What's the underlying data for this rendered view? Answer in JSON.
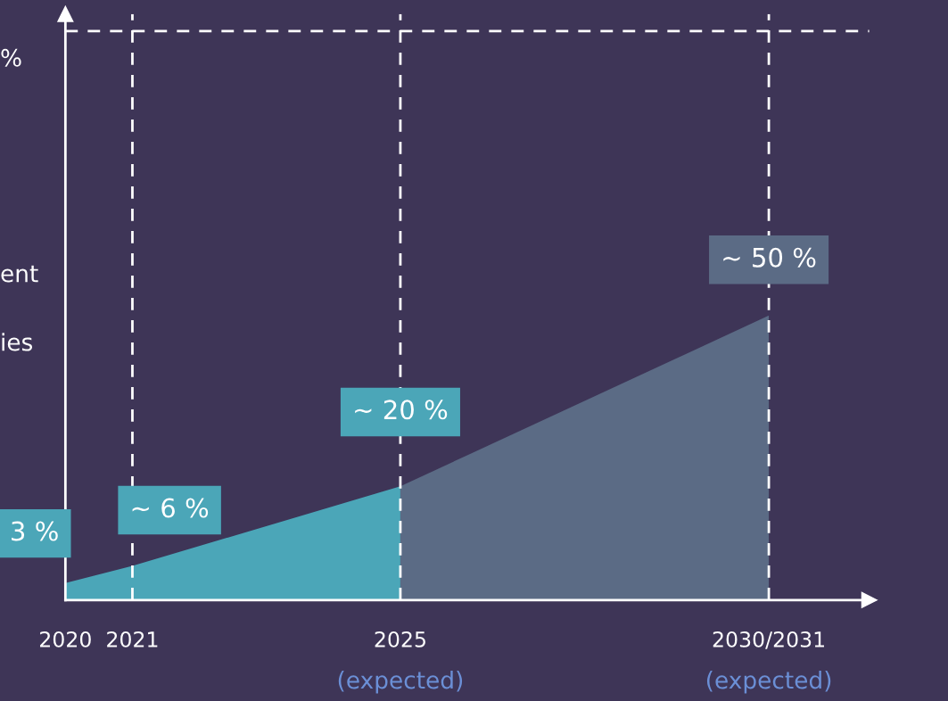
{
  "chart_data": {
    "type": "area",
    "xlim": [
      2020,
      2032
    ],
    "ylim": [
      0,
      103
    ],
    "xticks": [
      2020,
      2021,
      2025,
      {
        "value": 2030.5,
        "label": "2030/2031"
      }
    ],
    "tick_labels": "x",
    "grid": false,
    "series": [
      {
        "color": "#4ba6b8",
        "x": [
          2020,
          2021,
          2025
        ],
        "values": [
          3,
          6,
          20
        ],
        "value_labels": [
          "3 %",
          "~ 6 %",
          "~ 20 %"
        ]
      },
      {
        "color": "#5b6b85",
        "x": [
          2025,
          2030.5
        ],
        "values": [
          20,
          50
        ],
        "value_labels": [
          null,
          "~ 50 %"
        ]
      }
    ],
    "ref_lines": [
      {
        "axis": "x",
        "value": 2021,
        "color": "#ffffff",
        "line_style": "dashed"
      },
      {
        "axis": "x",
        "value": 2025,
        "color": "#ffffff",
        "line_style": "dashed"
      },
      {
        "axis": "x",
        "value": 2030.5,
        "color": "#ffffff",
        "line_style": "dashed"
      },
      {
        "axis": "y",
        "value": 100,
        "color": "#ffffff",
        "line_style": "dashed",
        "label": "%"
      }
    ],
    "annotations": [
      "ent",
      "ies",
      "(expected)",
      "(expected)"
    ]
  }
}
